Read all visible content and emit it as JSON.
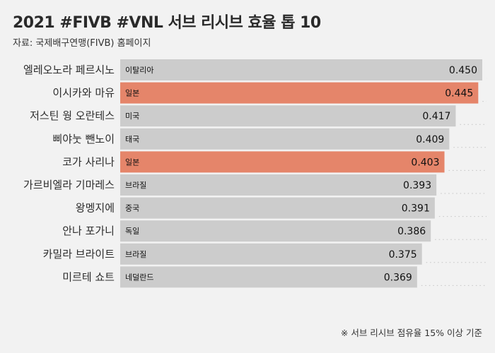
{
  "title": "2021 #FIVB #VNL 서브 리시브 효율 톱 10",
  "subtitle": "자료: 국제배구연맹(FIVB) 홈페이지",
  "footnote": "※ 서브 리시브 점유율 15% 이상 기준",
  "colors": {
    "bar_default": "#cccccc",
    "bar_highlight": "#e5856a",
    "background": "#f2f2f2",
    "dotted_track": "#c4c4c4"
  },
  "chart_data": {
    "type": "bar",
    "orientation": "horizontal",
    "title": "2021 #FIVB #VNL 서브 리시브 효율 톱 10",
    "xlabel": "",
    "ylabel": "",
    "xlim": [
      0,
      0.45
    ],
    "grid": false,
    "legend": "none",
    "categories": [
      "엘레오노라 페르시노",
      "이시카와 마유",
      "저스틴 웡 오란테스",
      "삐야눗 뺀노이",
      "코가 사리나",
      "가르비엘라 기마레스",
      "왕멩지에",
      "안나 포가니",
      "카밀라 브라이트",
      "미르테 쇼트"
    ],
    "countries": [
      "이탈리아",
      "일본",
      "미국",
      "태국",
      "일본",
      "브라질",
      "중국",
      "독일",
      "브라질",
      "네덜란드"
    ],
    "values": [
      0.45,
      0.445,
      0.417,
      0.409,
      0.403,
      0.393,
      0.391,
      0.386,
      0.375,
      0.369
    ],
    "value_labels": [
      "0.450",
      "0.445",
      "0.417",
      "0.409",
      "0.403",
      "0.393",
      "0.391",
      "0.386",
      "0.375",
      "0.369"
    ],
    "highlighted": [
      false,
      true,
      false,
      false,
      true,
      false,
      false,
      false,
      false,
      false
    ]
  }
}
